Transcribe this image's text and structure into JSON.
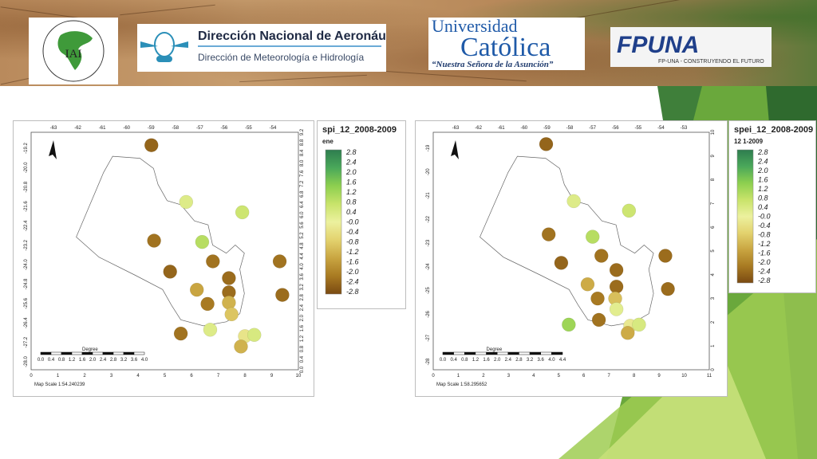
{
  "logos": {
    "iai_text": "IAI",
    "iai_ring": "FOR GLOBAL CHANGE RESEARCH · INTER-AMERICAN INSTITUTE",
    "dinac_title": "Dirección Nacional de Aeronáutica Civil",
    "dinac_subtitle": "Dirección de Meteorología e Hidrología",
    "uc_line1": "Universidad",
    "uc_line2": "Católica",
    "uc_line3": "“Nuestra Señora de la Asunción”",
    "fpuna_name": "FPUNA",
    "fpuna_slogan": "FP-UNA - CONSTRUYENDO EL FUTURO"
  },
  "colors": {
    "ramp": [
      "#2e7d4f",
      "#4aa85a",
      "#8dcf4f",
      "#c8e36a",
      "#ecf19e",
      "#e3d26e",
      "#c9a541",
      "#a87a22",
      "#7a4a12"
    ]
  },
  "chart_data": [
    {
      "type": "scatter",
      "title": "spi_12_2008-2009",
      "legend_subtitle": "ene",
      "x_ticks_top": [
        "-63",
        "-62",
        "-61",
        "-60",
        "-59",
        "-58",
        "-57",
        "-56",
        "-55",
        "-54"
      ],
      "x_ticks_bottom": [
        "0",
        "1",
        "2",
        "3",
        "4",
        "5",
        "6",
        "7",
        "8",
        "9",
        "10"
      ],
      "y_ticks_left": [
        "-19.2",
        "-20.0",
        "-20.8",
        "-21.6",
        "-22.4",
        "-23.2",
        "-24.0",
        "-24.8",
        "-25.6",
        "-26.4",
        "-27.2",
        "-28.0"
      ],
      "y_ticks_right": [
        "0.0",
        "0.4",
        "0.8",
        "1.2",
        "1.6",
        "2.0",
        "2.4",
        "2.8",
        "3.2",
        "3.6",
        "4.0",
        "4.4",
        "4.8",
        "5.2",
        "5.6",
        "6.0",
        "6.4",
        "6.8",
        "7.2",
        "7.6",
        "8.0",
        "8.4",
        "8.8",
        "9.2"
      ],
      "scale_label": "Degree",
      "scale_ticks": [
        "0.0",
        "0.4",
        "0.8",
        "1.2",
        "1.6",
        "2.0",
        "2.4",
        "2.8",
        "3.2",
        "3.6",
        "4.0"
      ],
      "map_scale": "Map Scale 1:54.240239",
      "legend_values": [
        "2.8",
        "2.4",
        "2.0",
        "1.6",
        "1.2",
        "0.8",
        "0.4",
        "-0.0",
        "-0.4",
        "-0.8",
        "-1.2",
        "-1.6",
        "-2.0",
        "-2.4",
        "-2.8"
      ],
      "points": [
        {
          "x": 4.5,
          "y": 8.7,
          "v": -2.4
        },
        {
          "x": 5.8,
          "y": 6.5,
          "v": 0.3
        },
        {
          "x": 7.9,
          "y": 6.1,
          "v": 0.6
        },
        {
          "x": 4.6,
          "y": 5.0,
          "v": -2.2
        },
        {
          "x": 6.4,
          "y": 4.95,
          "v": 0.9
        },
        {
          "x": 9.3,
          "y": 4.2,
          "v": -2.2
        },
        {
          "x": 6.8,
          "y": 4.2,
          "v": -2.2
        },
        {
          "x": 5.2,
          "y": 3.8,
          "v": -2.4
        },
        {
          "x": 7.4,
          "y": 3.55,
          "v": -2.3
        },
        {
          "x": 6.2,
          "y": 3.1,
          "v": -1.4
        },
        {
          "x": 7.4,
          "y": 3.0,
          "v": -2.3
        },
        {
          "x": 9.4,
          "y": 2.9,
          "v": -2.3
        },
        {
          "x": 7.4,
          "y": 2.6,
          "v": -1.2
        },
        {
          "x": 6.6,
          "y": 2.55,
          "v": -2.1
        },
        {
          "x": 7.5,
          "y": 2.15,
          "v": -0.9
        },
        {
          "x": 6.7,
          "y": 1.55,
          "v": 0.3
        },
        {
          "x": 5.6,
          "y": 1.4,
          "v": -2.2
        },
        {
          "x": 8.0,
          "y": 1.3,
          "v": -0.3
        },
        {
          "x": 8.35,
          "y": 1.35,
          "v": 0.4
        },
        {
          "x": 7.85,
          "y": 0.9,
          "v": -1.2
        }
      ]
    },
    {
      "type": "scatter",
      "title": "spei_12_2008-2009",
      "legend_subtitle": "12 1-2009",
      "x_ticks_top": [
        "-63",
        "-62",
        "-61",
        "-60",
        "-59",
        "-58",
        "-57",
        "-56",
        "-55",
        "-54",
        "-53"
      ],
      "x_ticks_bottom": [
        "0",
        "1",
        "2",
        "3",
        "4",
        "5",
        "6",
        "7",
        "8",
        "9",
        "10",
        "11"
      ],
      "y_ticks_left": [
        "-19",
        "-20",
        "-21",
        "-22",
        "-23",
        "-24",
        "-25",
        "-26",
        "-27",
        "-28"
      ],
      "y_ticks_right": [
        "0",
        "1",
        "2",
        "3",
        "4",
        "5",
        "6",
        "7",
        "8",
        "9",
        "10"
      ],
      "scale_label": "Degree",
      "scale_ticks": [
        "0.0",
        "0.4",
        "0.8",
        "1.2",
        "1.6",
        "2.0",
        "2.4",
        "2.8",
        "3.2",
        "3.6",
        "4.0",
        "4.4"
      ],
      "map_scale": "Map Scale 1:58.295652",
      "legend_values": [
        "2.8",
        "2.4",
        "2.0",
        "1.6",
        "1.2",
        "0.8",
        "0.4",
        "-0.0",
        "-0.4",
        "-0.8",
        "-1.2",
        "-1.6",
        "-2.0",
        "-2.4",
        "-2.8"
      ],
      "points": [
        {
          "x": 4.5,
          "y": 9.5,
          "v": -2.4
        },
        {
          "x": 5.6,
          "y": 7.1,
          "v": 0.3
        },
        {
          "x": 7.8,
          "y": 6.7,
          "v": 0.6
        },
        {
          "x": 4.6,
          "y": 5.7,
          "v": -2.2
        },
        {
          "x": 6.35,
          "y": 5.6,
          "v": 0.9
        },
        {
          "x": 9.25,
          "y": 4.8,
          "v": -2.3
        },
        {
          "x": 6.7,
          "y": 4.8,
          "v": -2.2
        },
        {
          "x": 5.1,
          "y": 4.5,
          "v": -2.4
        },
        {
          "x": 7.3,
          "y": 4.2,
          "v": -2.3
        },
        {
          "x": 6.15,
          "y": 3.6,
          "v": -1.3
        },
        {
          "x": 7.3,
          "y": 3.5,
          "v": -2.3
        },
        {
          "x": 9.35,
          "y": 3.4,
          "v": -2.3
        },
        {
          "x": 7.25,
          "y": 3.0,
          "v": -1.0
        },
        {
          "x": 6.55,
          "y": 3.0,
          "v": -2.1
        },
        {
          "x": 7.3,
          "y": 2.55,
          "v": 0.2
        },
        {
          "x": 6.6,
          "y": 2.1,
          "v": -2.2
        },
        {
          "x": 5.4,
          "y": 1.9,
          "v": 1.2
        },
        {
          "x": 7.85,
          "y": 1.85,
          "v": -0.2
        },
        {
          "x": 8.2,
          "y": 1.9,
          "v": 0.4
        },
        {
          "x": 7.75,
          "y": 1.55,
          "v": -1.3
        }
      ]
    }
  ]
}
